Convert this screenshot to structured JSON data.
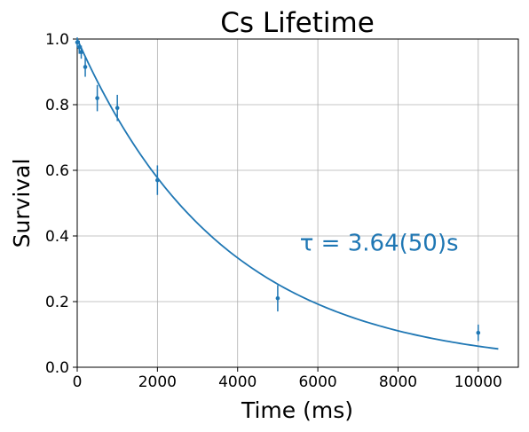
{
  "chart_data": {
    "type": "scatter",
    "title": "Cs Lifetime",
    "xlabel": "Time (ms)",
    "ylabel": "Survival",
    "xlim": [
      0,
      11000
    ],
    "ylim": [
      0,
      1.0
    ],
    "x_ticks": [
      0,
      2000,
      4000,
      6000,
      8000,
      10000
    ],
    "y_ticks": [
      0.0,
      0.2,
      0.4,
      0.6,
      0.8,
      1.0
    ],
    "x_tick_labels": [
      "0",
      "2000",
      "4000",
      "6000",
      "8000",
      "10000"
    ],
    "y_tick_labels": [
      "0.0",
      "0.2",
      "0.4",
      "0.6",
      "0.8",
      "1.0"
    ],
    "grid": true,
    "color": "#1f77b4",
    "series": [
      {
        "kind": "errorbar",
        "points": [
          {
            "x": 0,
            "y": 0.99,
            "err": 0.015
          },
          {
            "x": 50,
            "y": 0.975,
            "err": 0.02
          },
          {
            "x": 100,
            "y": 0.96,
            "err": 0.02
          },
          {
            "x": 200,
            "y": 0.915,
            "err": 0.03
          },
          {
            "x": 500,
            "y": 0.82,
            "err": 0.04
          },
          {
            "x": 1000,
            "y": 0.79,
            "err": 0.04
          },
          {
            "x": 2000,
            "y": 0.57,
            "err": 0.045
          },
          {
            "x": 5000,
            "y": 0.21,
            "err": 0.04
          },
          {
            "x": 10000,
            "y": 0.105,
            "err": 0.025
          }
        ]
      },
      {
        "kind": "fit",
        "model": "exponential",
        "tau_ms": 3640,
        "x_range": [
          0,
          10500
        ]
      }
    ],
    "annotations": [
      {
        "text": "τ = 3.64(50)s",
        "x": 5550,
        "y": 0.355
      }
    ]
  }
}
